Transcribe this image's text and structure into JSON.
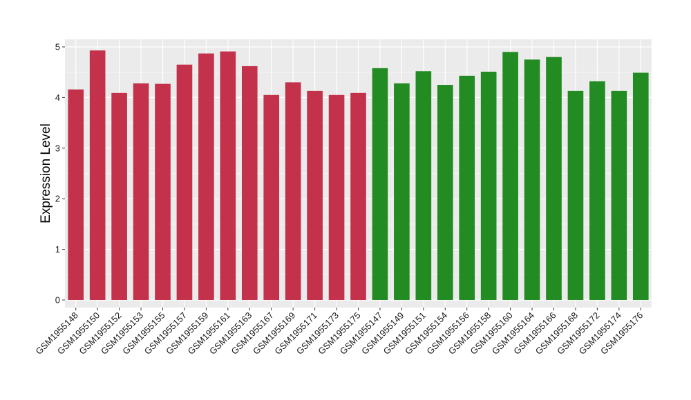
{
  "chart_data": {
    "type": "bar",
    "title": "",
    "xlabel": "",
    "ylabel": "Expression Level",
    "ylim": [
      -0.15,
      5.15
    ],
    "yticks": [
      0,
      1,
      2,
      3,
      4,
      5
    ],
    "grid": true,
    "legend": "none",
    "colors": {
      "group1": "#c4314b",
      "group2": "#228b22",
      "panel": "#ebebeb",
      "grid": "#ffffff"
    },
    "categories": [
      "GSM1955148",
      "GSM1955150",
      "GSM1955152",
      "GSM1955153",
      "GSM1955155",
      "GSM1955157",
      "GSM1955159",
      "GSM1955161",
      "GSM1955163",
      "GSM1955167",
      "GSM1955169",
      "GSM1955171",
      "GSM1955173",
      "GSM1955175",
      "GSM1955147",
      "GSM1955149",
      "GSM1955151",
      "GSM1955154",
      "GSM1955156",
      "GSM1955158",
      "GSM1955160",
      "GSM1955164",
      "GSM1955166",
      "GSM1955168",
      "GSM1955172",
      "GSM1955174",
      "GSM1955176"
    ],
    "values": [
      4.16,
      4.93,
      4.09,
      4.28,
      4.27,
      4.65,
      4.87,
      4.91,
      4.62,
      4.05,
      4.3,
      4.13,
      4.05,
      4.09,
      4.58,
      4.28,
      4.52,
      4.25,
      4.43,
      4.51,
      4.9,
      4.75,
      4.8,
      4.13,
      4.32,
      4.13,
      4.49
    ],
    "groups": [
      "group1",
      "group1",
      "group1",
      "group1",
      "group1",
      "group1",
      "group1",
      "group1",
      "group1",
      "group1",
      "group1",
      "group1",
      "group1",
      "group1",
      "group2",
      "group2",
      "group2",
      "group2",
      "group2",
      "group2",
      "group2",
      "group2",
      "group2",
      "group2",
      "group2",
      "group2",
      "group2"
    ]
  }
}
